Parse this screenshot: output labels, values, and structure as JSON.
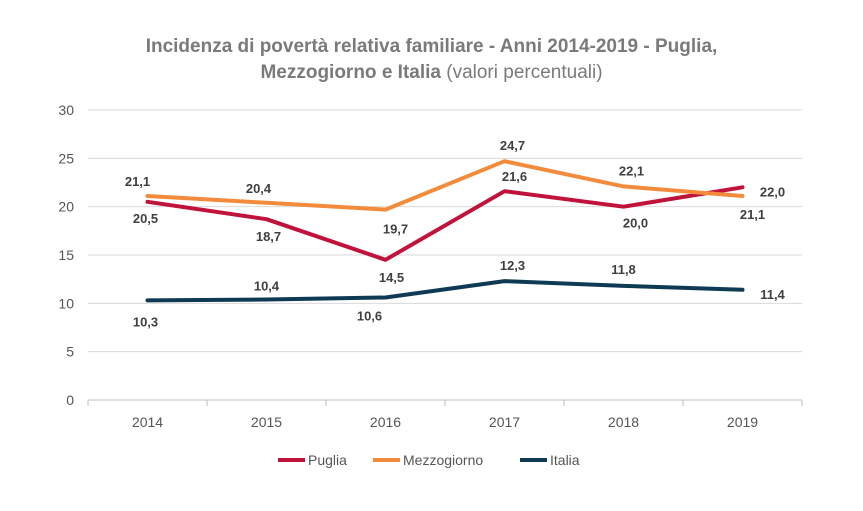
{
  "chart_data": {
    "type": "line",
    "title": "Incidenza di povertà relativa familiare - Anni 2014-2019 - Puglia,",
    "title_line2": "Mezzogiorno e Italia",
    "subtitle": "(valori percentuali)",
    "categories": [
      "2014",
      "2015",
      "2016",
      "2017",
      "2018",
      "2019"
    ],
    "ylim": [
      0,
      30
    ],
    "yticks": [
      "0",
      "5",
      "10",
      "15",
      "20",
      "25",
      "30"
    ],
    "grid": true,
    "legend_position": "bottom",
    "series": [
      {
        "name": "Puglia",
        "color": "#c0123a",
        "values": [
          20.5,
          18.7,
          14.5,
          21.6,
          20.0,
          22.0
        ],
        "labels": [
          "20,5",
          "18,7",
          "14,5",
          "21,6",
          "20,0",
          "22,0"
        ]
      },
      {
        "name": "Mezzogiorno",
        "color": "#f28c3c",
        "values": [
          21.1,
          20.4,
          19.7,
          24.7,
          22.1,
          21.1
        ],
        "labels": [
          "21,1",
          "20,4",
          "19,7",
          "24,7",
          "22,1",
          "21,1"
        ]
      },
      {
        "name": "Italia",
        "color": "#0e3a53",
        "values": [
          10.3,
          10.4,
          10.6,
          12.3,
          11.8,
          11.4
        ],
        "labels": [
          "10,3",
          "10,4",
          "10,6",
          "12,3",
          "11,8",
          "11,4"
        ]
      }
    ]
  }
}
